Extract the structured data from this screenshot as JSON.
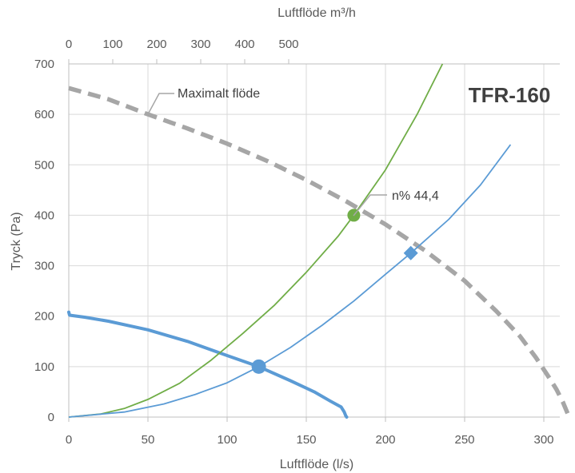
{
  "chart_data": {
    "type": "line",
    "title": "TFR-160",
    "xlabel": "Luftflöde (l/s)",
    "ylabel": "Tryck (Pa)",
    "x2label": "Luftflöde m³/h",
    "xlim": [
      0,
      320
    ],
    "ylim": [
      0,
      700
    ],
    "x2lim": [
      0,
      1152
    ],
    "xticks": [
      0,
      50,
      100,
      150,
      200,
      250,
      300
    ],
    "yticks": [
      0,
      100,
      200,
      300,
      400,
      500,
      600,
      700
    ],
    "x2ticks": [
      0,
      100,
      200,
      300,
      400,
      500
    ],
    "grid": true,
    "colors": {
      "fan_curve": "#5b9bd5",
      "system_green": "#70ad47",
      "system_blue": "#5b9bd5",
      "max_flow": "#a6a6a6",
      "grid": "#d9d9d9",
      "axis": "#bfbfbf"
    },
    "series": [
      {
        "key": "max_flow",
        "style": "dashed",
        "x": [
          0,
          25,
          50,
          75,
          100,
          125,
          150,
          175,
          200,
          225,
          250,
          270,
          285,
          295,
          303,
          308,
          312,
          314,
          316
        ],
        "y": [
          652,
          630,
          600,
          572,
          542,
          508,
          470,
          428,
          382,
          330,
          270,
          210,
          160,
          118,
          80,
          55,
          30,
          15,
          0
        ]
      },
      {
        "key": "fan_curve",
        "style": "thick",
        "x": [
          0,
          0.5,
          10,
          25,
          50,
          75,
          100,
          120,
          140,
          155,
          165,
          172,
          174,
          175,
          175.5
        ],
        "y": [
          208,
          202,
          198,
          190,
          173,
          150,
          122,
          100,
          72,
          50,
          32,
          20,
          10,
          2,
          0
        ]
      },
      {
        "key": "system_green",
        "style": "thin",
        "x": [
          0,
          20,
          35,
          50,
          70,
          90,
          110,
          130,
          150,
          170,
          180,
          200,
          220,
          236
        ],
        "y": [
          0,
          6,
          17,
          35,
          67,
          113,
          166,
          222,
          287,
          358,
          400,
          490,
          600,
          700
        ]
      },
      {
        "key": "system_blue",
        "style": "thin",
        "x": [
          0,
          35,
          60,
          80,
          100,
          120,
          140,
          160,
          180,
          200,
          216,
          240,
          260,
          279
        ],
        "y": [
          0,
          10,
          26,
          45,
          68,
          100,
          138,
          182,
          230,
          283,
          325,
          392,
          460,
          540
        ]
      }
    ],
    "points": [
      {
        "key": "fan_point",
        "x": 120,
        "y": 100,
        "shape": "circle",
        "color": "#5b9bd5"
      },
      {
        "key": "green_point",
        "x": 180,
        "y": 400,
        "shape": "circle",
        "color": "#70ad47"
      },
      {
        "key": "blue_point",
        "x": 216,
        "y": 325,
        "shape": "diamond",
        "color": "#5b9bd5"
      }
    ],
    "annotations": [
      {
        "key": "max_flow_label",
        "text": "Maximalt flöde",
        "x": 50,
        "y": 600
      },
      {
        "key": "efficiency_label",
        "text": "n% 44,4",
        "x": 180,
        "y": 400
      }
    ]
  }
}
